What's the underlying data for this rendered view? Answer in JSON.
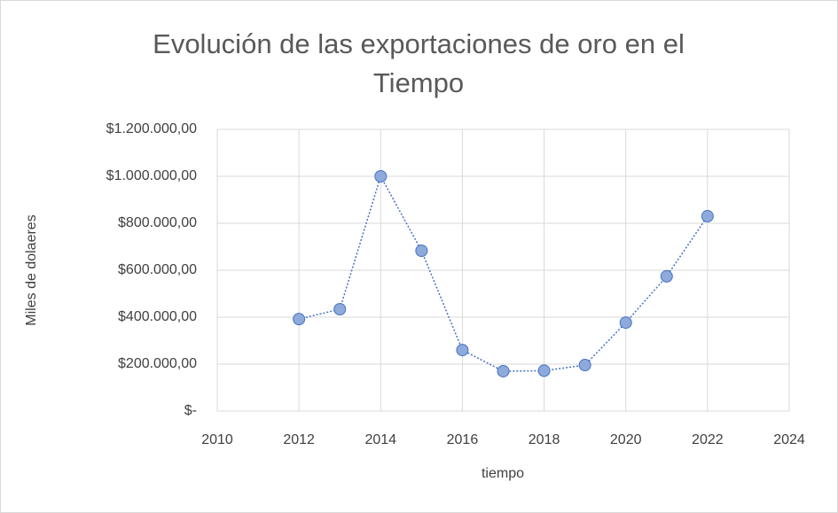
{
  "chart_data": {
    "type": "scatter",
    "title": "Evolución de las exportaciones de oro en el Tiempo",
    "x_label": "tiempo",
    "y_label": "Miles de dolaeres",
    "x": [
      2012,
      2013,
      2014,
      2015,
      2016,
      2017,
      2018,
      2019,
      2020,
      2021,
      2022
    ],
    "values": [
      392000,
      434000,
      1000000,
      683000,
      260000,
      170000,
      172000,
      196000,
      377000,
      574000,
      830000
    ],
    "color": "#8eaadb",
    "line_color": "#4472c4",
    "xlim": [
      2010,
      2024
    ],
    "xticks": [
      2010,
      2012,
      2014,
      2016,
      2018,
      2020,
      2022,
      2024
    ],
    "ylim": [
      0,
      1200000
    ],
    "yticks": [
      {
        "value": 0,
        "label": "$-"
      },
      {
        "value": 200000,
        "label": "$200.000,00"
      },
      {
        "value": 400000,
        "label": "$400.000,00"
      },
      {
        "value": 600000,
        "label": "$600.000,00"
      },
      {
        "value": 800000,
        "label": "$800.000,00"
      },
      {
        "value": 1000000,
        "label": "$1.000.000,00"
      },
      {
        "value": 1200000,
        "label": "$1.200.000,00"
      }
    ],
    "grid": true
  }
}
